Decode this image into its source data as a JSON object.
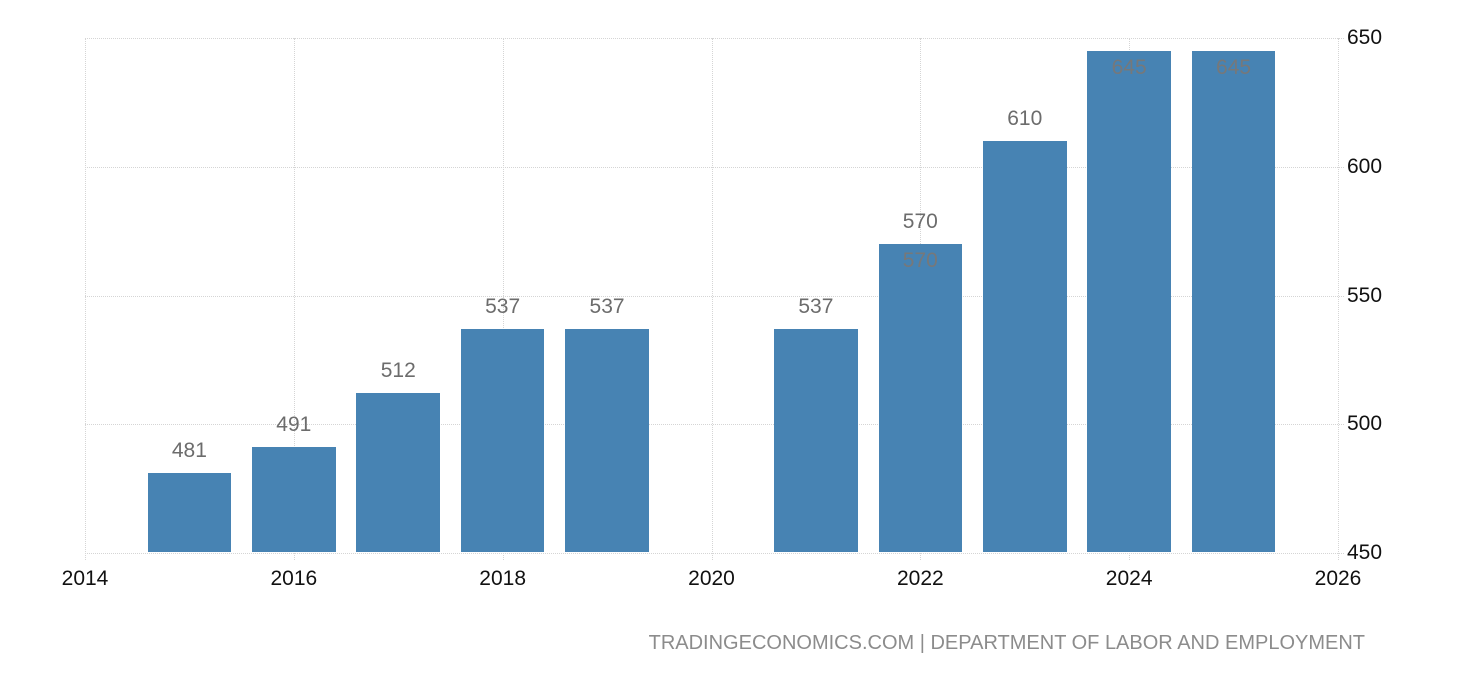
{
  "footer": {
    "text": "TRADINGECONOMICS.COM | DEPARTMENT OF LABOR AND EMPLOYMENT"
  },
  "chart_data": {
    "type": "bar",
    "title": "",
    "xlabel": "",
    "ylabel": "",
    "x": [
      2015,
      2016,
      2017,
      2018,
      2019,
      2021,
      2022,
      2023,
      2024,
      2025
    ],
    "values": [
      481,
      491,
      512,
      537,
      537,
      537,
      570,
      610,
      645,
      645
    ],
    "point_labels": [
      {
        "x": 2015,
        "text": "481",
        "placement": "above"
      },
      {
        "x": 2016,
        "text": "491",
        "placement": "above"
      },
      {
        "x": 2017,
        "text": "512",
        "placement": "above"
      },
      {
        "x": 2018,
        "text": "537",
        "placement": "above"
      },
      {
        "x": 2019,
        "text": "537",
        "placement": "above"
      },
      {
        "x": 2021,
        "text": "537",
        "placement": "above"
      },
      {
        "x": 2022,
        "text": "570",
        "placement": "above"
      },
      {
        "x": 2022,
        "text": "570",
        "placement": "inside"
      },
      {
        "x": 2023,
        "text": "610",
        "placement": "above"
      },
      {
        "x": 2024,
        "text": "645",
        "placement": "inside"
      },
      {
        "x": 2025,
        "text": "645",
        "placement": "inside"
      }
    ],
    "xticks": [
      "2014",
      "2016",
      "2018",
      "2020",
      "2022",
      "2024",
      "2026"
    ],
    "yticks": [
      "450",
      "500",
      "550",
      "600",
      "650"
    ],
    "xlim": [
      2014,
      2026
    ],
    "ylim": [
      450,
      650
    ],
    "bar_width_ratio": 0.8,
    "grid": true,
    "legend": "none",
    "y_axis_position": "right",
    "colors": {
      "bar_color": "#4783b3",
      "grid_color": "#d5d5d5",
      "axis_label_color": "#111111",
      "label_color": "#6c6c6c",
      "inside_label_color": "#76787a",
      "footer_color": "#8c8c8c",
      "background": "#ffffff"
    }
  }
}
